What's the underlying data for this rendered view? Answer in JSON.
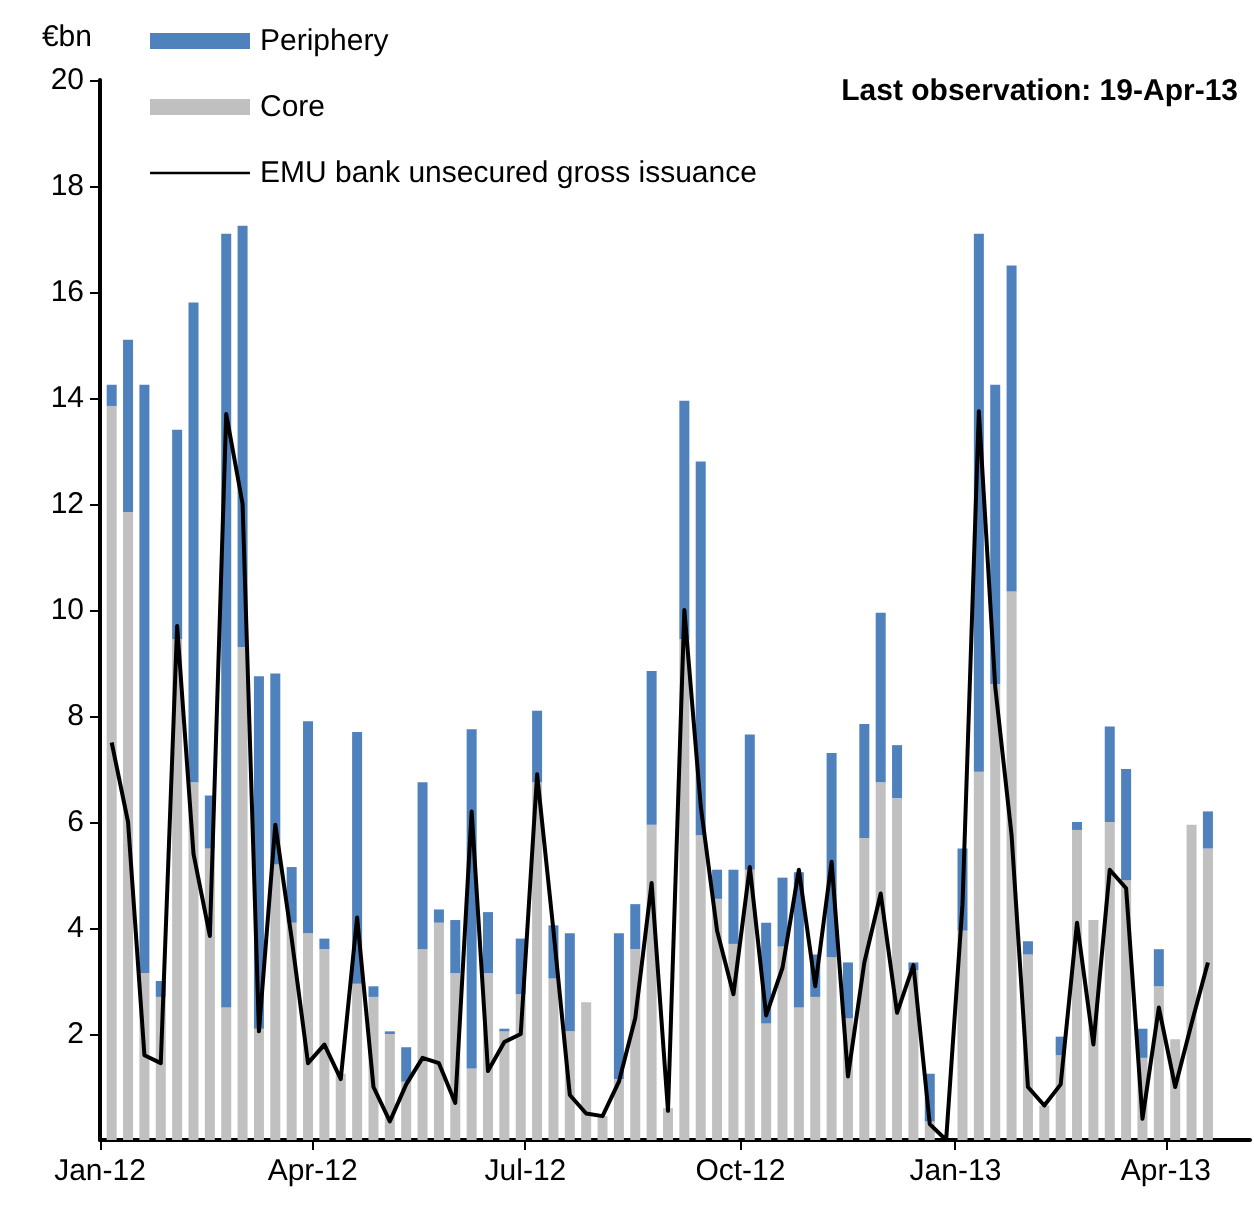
{
  "chart_data": {
    "type": "bar",
    "stacked": true,
    "ylabel": "€bn",
    "annotations": [
      "Last observation: 19-Apr-13"
    ],
    "x": [
      "2012-01-06",
      "2012-01-13",
      "2012-01-20",
      "2012-01-27",
      "2012-02-03",
      "2012-02-10",
      "2012-02-17",
      "2012-02-24",
      "2012-03-02",
      "2012-03-09",
      "2012-03-16",
      "2012-03-23",
      "2012-03-30",
      "2012-04-06",
      "2012-04-13",
      "2012-04-20",
      "2012-04-27",
      "2012-05-04",
      "2012-05-11",
      "2012-05-18",
      "2012-05-25",
      "2012-06-01",
      "2012-06-08",
      "2012-06-15",
      "2012-06-22",
      "2012-06-29",
      "2012-07-06",
      "2012-07-13",
      "2012-07-20",
      "2012-07-27",
      "2012-08-03",
      "2012-08-10",
      "2012-08-17",
      "2012-08-24",
      "2012-08-31",
      "2012-09-07",
      "2012-09-14",
      "2012-09-21",
      "2012-09-28",
      "2012-10-05",
      "2012-10-12",
      "2012-10-19",
      "2012-10-26",
      "2012-11-02",
      "2012-11-09",
      "2012-11-16",
      "2012-11-23",
      "2012-11-30",
      "2012-12-07",
      "2012-12-14",
      "2012-12-21",
      "2012-12-28",
      "2013-01-04",
      "2013-01-11",
      "2013-01-18",
      "2013-01-25",
      "2013-02-01",
      "2013-02-08",
      "2013-02-15",
      "2013-02-22",
      "2013-03-01",
      "2013-03-08",
      "2013-03-15",
      "2013-03-22",
      "2013-03-29",
      "2013-04-05",
      "2013-04-12",
      "2013-04-19"
    ],
    "series": [
      {
        "name": "Core",
        "color": "#c0c0c0",
        "values": [
          13.85,
          11.85,
          3.15,
          2.7,
          9.45,
          6.75,
          5.5,
          2.5,
          9.3,
          2.1,
          5.2,
          4.1,
          3.9,
          3.6,
          1.25,
          2.95,
          2.7,
          2.0,
          1.1,
          3.6,
          4.1,
          3.15,
          1.35,
          3.15,
          2.05,
          2.75,
          6.75,
          3.05,
          2.05,
          2.6,
          0.45,
          1.15,
          3.6,
          5.95,
          0.6,
          9.45,
          5.75,
          4.55,
          3.7,
          5.1,
          2.2,
          3.65,
          2.5,
          2.7,
          3.45,
          2.3,
          5.7,
          6.75,
          6.45,
          3.2,
          0.35,
          null,
          3.95,
          6.95,
          8.6,
          10.35,
          3.5,
          0.65,
          1.6,
          5.85,
          4.15,
          6.0,
          4.9,
          1.55,
          2.9,
          1.9,
          5.95,
          5.5
        ]
      },
      {
        "name": "Periphery",
        "color": "#4f81bd",
        "values": [
          0.4,
          3.25,
          11.1,
          0.3,
          3.95,
          9.05,
          1.0,
          14.6,
          7.95,
          6.65,
          3.6,
          1.05,
          4.0,
          0.2,
          null,
          4.75,
          0.2,
          0.05,
          0.65,
          3.15,
          0.25,
          1.0,
          6.4,
          1.15,
          0.05,
          1.05,
          1.35,
          1.0,
          1.85,
          0,
          null,
          2.75,
          0.85,
          2.9,
          0,
          4.5,
          7.05,
          0.55,
          1.4,
          2.55,
          1.9,
          1.3,
          2.55,
          0.8,
          3.85,
          1.05,
          2.15,
          3.2,
          1.0,
          0.15,
          0.9,
          0,
          1.55,
          10.15,
          5.65,
          6.15,
          0.25,
          0,
          0.35,
          0.15,
          0,
          1.8,
          2.1,
          0.55,
          0.7,
          0,
          0,
          0.7
        ]
      },
      {
        "name": "EMU bank unsecured gross issuance",
        "type": "line",
        "color": "#000000",
        "values": [
          7.5,
          6.0,
          1.6,
          1.45,
          9.7,
          5.4,
          3.85,
          13.7,
          12.0,
          2.05,
          5.95,
          3.8,
          1.45,
          1.8,
          1.15,
          4.2,
          1.0,
          0.35,
          1.05,
          1.55,
          1.45,
          0.7,
          6.2,
          1.3,
          1.85,
          2.0,
          6.9,
          3.95,
          0.85,
          0.5,
          0.45,
          1.1,
          2.3,
          4.85,
          0.55,
          10.0,
          6.3,
          3.95,
          2.75,
          5.15,
          2.35,
          3.25,
          5.1,
          2.9,
          5.25,
          1.2,
          3.35,
          4.65,
          2.4,
          3.3,
          0.3,
          0.0,
          4.45,
          13.75,
          8.55,
          5.75,
          1.0,
          0.65,
          1.05,
          4.1,
          1.8,
          5.1,
          4.75,
          0.4,
          2.5,
          1.0,
          2.2,
          3.35
        ]
      }
    ],
    "ylim": [
      0,
      20
    ],
    "yticks": [
      2,
      4,
      6,
      8,
      10,
      12,
      14,
      16,
      18,
      20
    ],
    "xlim": [
      "2012-01-01",
      "2013-05-07"
    ],
    "xticks": [
      {
        "value": "2012-01-01",
        "label": "Jan-12"
      },
      {
        "value": "2012-04-01",
        "label": "Apr-12"
      },
      {
        "value": "2012-07-01",
        "label": "Jul-12"
      },
      {
        "value": "2012-10-01",
        "label": "Oct-12"
      },
      {
        "value": "2013-01-01",
        "label": "Jan-13"
      },
      {
        "value": "2013-04-01",
        "label": "Apr-13"
      }
    ],
    "grid": false,
    "legend": "top left",
    "marker": "none",
    "line_style": "solid"
  }
}
